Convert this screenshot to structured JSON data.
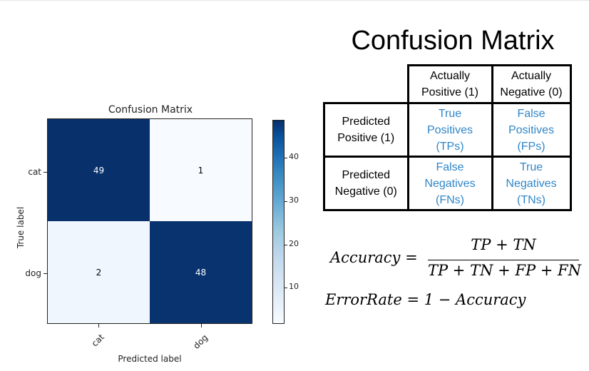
{
  "heatmap": {
    "title": "Confusion Matrix",
    "x_label": "Predicted label",
    "y_label": "True label",
    "x_ticks": [
      "cat",
      "dog"
    ],
    "y_ticks": [
      "cat",
      "dog"
    ],
    "cells": [
      {
        "value": "49",
        "color": "#08306b",
        "text_color": "#ffffff"
      },
      {
        "value": "1",
        "color": "#f7fbff",
        "text_color": "#000000"
      },
      {
        "value": "2",
        "color": "#f0f6fd",
        "text_color": "#000000"
      },
      {
        "value": "48",
        "color": "#08336e",
        "text_color": "#ffffff"
      }
    ],
    "colorbar_ticks": [
      "40",
      "30",
      "20",
      "10"
    ]
  },
  "chart_data": {
    "type": "heatmap",
    "title": "Confusion Matrix",
    "xlabel": "Predicted label",
    "ylabel": "True label",
    "x_categories": [
      "cat",
      "dog"
    ],
    "y_categories": [
      "cat",
      "dog"
    ],
    "values": [
      [
        49,
        1
      ],
      [
        2,
        48
      ]
    ],
    "colormap": "Blues",
    "colorbar_ticks": [
      10,
      20,
      30,
      40
    ]
  },
  "title": "Confusion Matrix",
  "table": {
    "col1": [
      "Actually",
      "Positive (1)"
    ],
    "col2": [
      "Actually",
      "Negative (0)"
    ],
    "row1": [
      "Predicted",
      "Positive (1)"
    ],
    "row2": [
      "Predicted",
      "Negative (0)"
    ],
    "tp": [
      "True",
      "Positives",
      "(TPs)"
    ],
    "fp": [
      "False",
      "Positives",
      "(FPs)"
    ],
    "fn": [
      "False",
      "Negatives",
      "(FNs)"
    ],
    "tn": [
      "True",
      "Negatives",
      "(TNs)"
    ],
    "blue_color": "#2f86c8"
  },
  "formulas": {
    "accuracy_lhs": "Accuracy =",
    "accuracy_num": "TP + TN",
    "accuracy_den": "TP + TN + FP + FN",
    "error_rate": "ErrorRate = 1 − Accuracy"
  }
}
